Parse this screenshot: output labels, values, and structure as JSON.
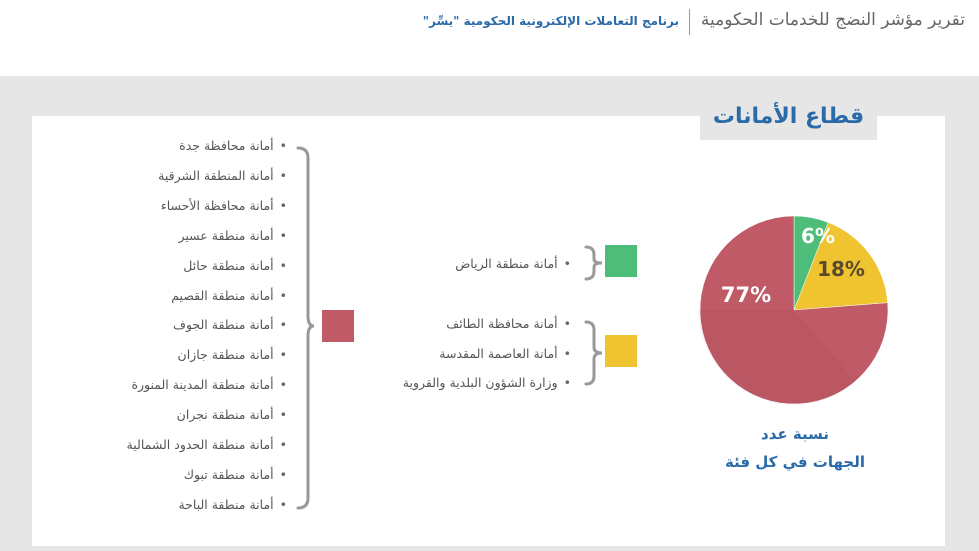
{
  "header": {
    "title": "تقرير مؤشر النضج للخدمات الحكومية",
    "subtitle": "برنامج التعاملات الإلكترونية الحكومية \"يسِّر\""
  },
  "sector_title": "قطاع الأمانات",
  "groups": {
    "red": {
      "color": "#c05a66",
      "items": [
        "أمانة محافظة جدة",
        "أمانة المنطقة الشرقية",
        "أمانة محافظة الأحساء",
        "أمانة منطقة عسير",
        "أمانة منطقة حائل",
        "أمانة منطقة القصيم",
        "أمانة منطقة الجوف",
        "أمانة منطقة جازان",
        "أمانة منطقة المدينة المنورة",
        "أمانة منطقة نجران",
        "أمانة منطقة الحدود الشمالية",
        "أمانة منطقة تبوك",
        "أمانة منطقة الباحة"
      ]
    },
    "green": {
      "color": "#4fbd7a",
      "items": [
        "أمانة منطقة الرياض"
      ]
    },
    "yellow": {
      "color": "#f0c430",
      "items": [
        "أمانة محافظة الطائف",
        "أمانة العاصمة المقدسة",
        "وزارة الشؤون البلدية والقروية"
      ]
    }
  },
  "chart_data": {
    "type": "pie",
    "slices": [
      {
        "label": "6%",
        "value": 6,
        "color": "#4fbd7a",
        "label_color": "#ffffff"
      },
      {
        "label": "18%",
        "value": 18,
        "color": "#f0c430",
        "label_color": "#5a4a2a"
      },
      {
        "label": "77%",
        "value": 77,
        "color": "#c05a66",
        "label_color": "#ffffff"
      }
    ],
    "caption_line1": "نسبة عدد",
    "caption_line2": "الجهات في كل فئة"
  }
}
